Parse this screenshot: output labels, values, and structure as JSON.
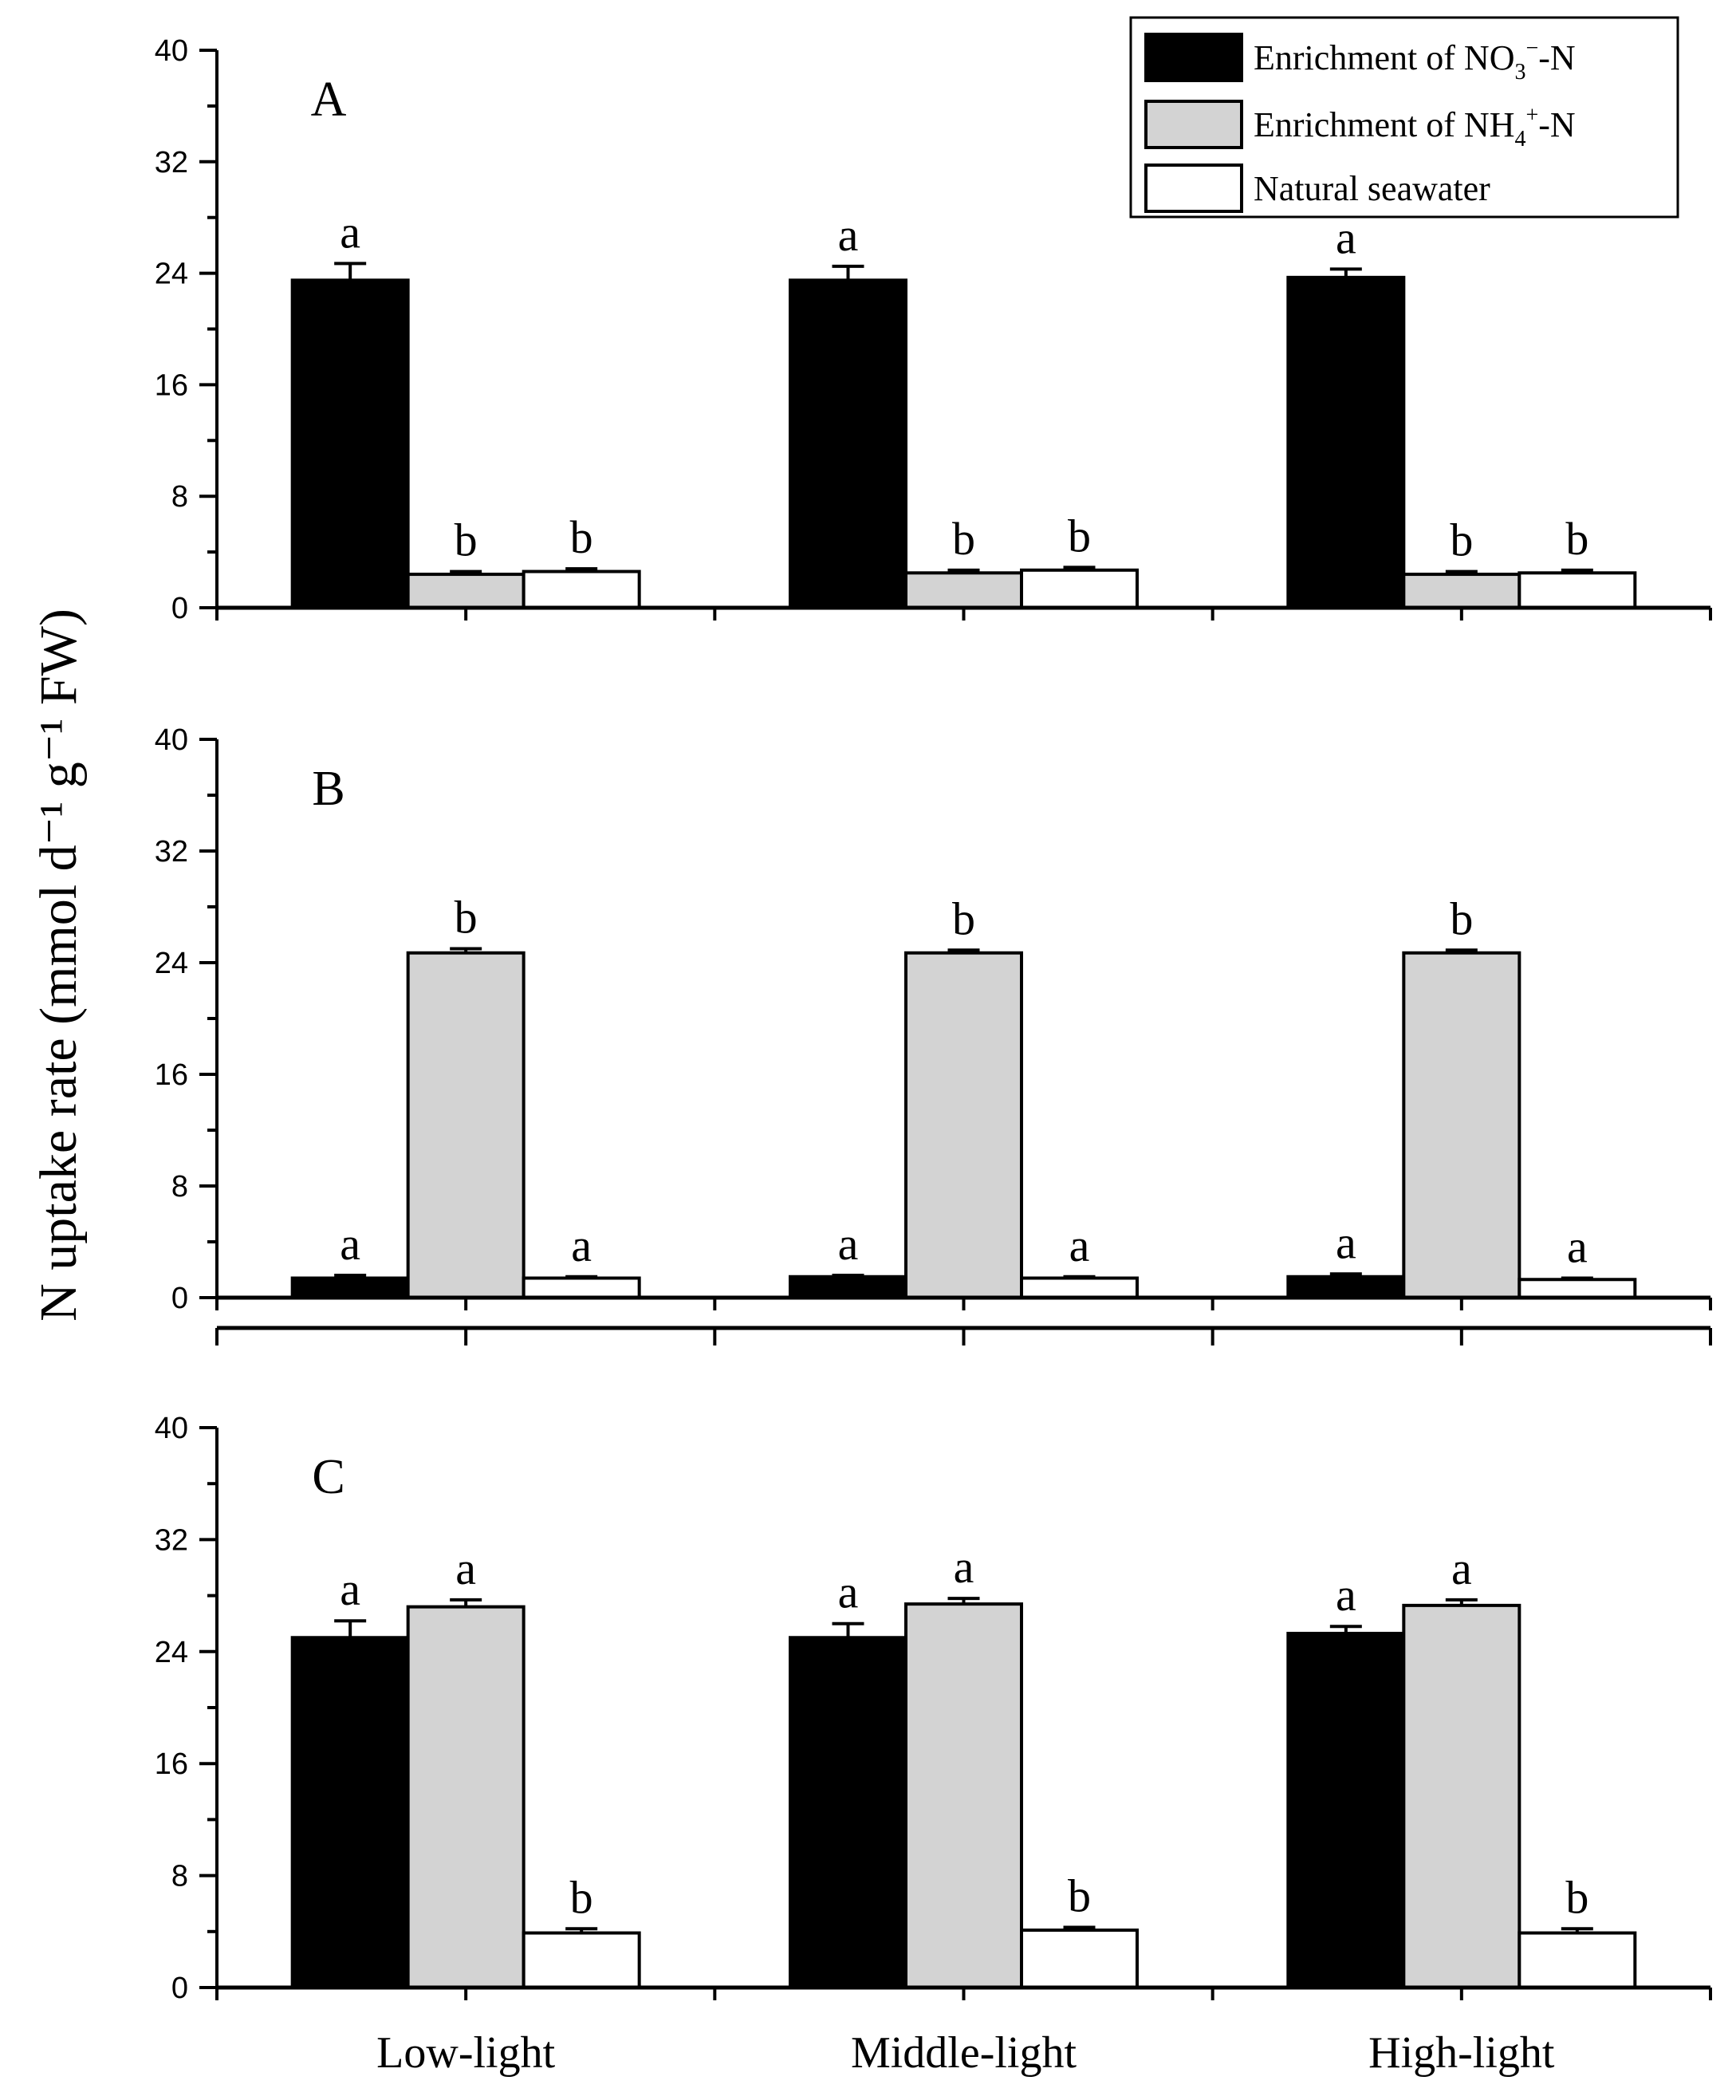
{
  "chart_data": {
    "type": "bar",
    "ylabel": "N uptake rate (mmol d⁻¹ g⁻¹ FW)",
    "ylim": [
      0,
      40
    ],
    "yticks": [
      0,
      8,
      16,
      24,
      32,
      40
    ],
    "categories": [
      "Low-light",
      "Middle-light",
      "High-light"
    ],
    "legend_position": "top-right",
    "legend": [
      {
        "label_main": "Enrichment of NO",
        "label_sub": "3",
        "label_sup": "−",
        "label_tail": "-N",
        "color": "#000000"
      },
      {
        "label_main": "Enrichment of NH",
        "label_sub": "4",
        "label_sup": "+",
        "label_tail": "-N",
        "color": "#d3d3d3"
      },
      {
        "label_main": "Natural seawater",
        "label_sub": "",
        "label_sup": "",
        "label_tail": "",
        "color": "#ffffff"
      }
    ],
    "panels": [
      {
        "label": "A",
        "series": [
          {
            "values": [
              23.5,
              23.5,
              23.7
            ],
            "errors": [
              1.2,
              1.0,
              0.6
            ],
            "letters": [
              "a",
              "a",
              "a"
            ]
          },
          {
            "values": [
              2.4,
              2.5,
              2.4
            ],
            "errors": [
              0.2,
              0.2,
              0.2
            ],
            "letters": [
              "b",
              "b",
              "b"
            ]
          },
          {
            "values": [
              2.6,
              2.7,
              2.5
            ],
            "errors": [
              0.2,
              0.2,
              0.2
            ],
            "letters": [
              "b",
              "b",
              "b"
            ]
          }
        ]
      },
      {
        "label": "B",
        "series": [
          {
            "values": [
              1.4,
              1.5,
              1.5
            ],
            "errors": [
              0.2,
              0.1,
              0.2
            ],
            "letters": [
              "a",
              "a",
              "a"
            ]
          },
          {
            "values": [
              24.7,
              24.7,
              24.7
            ],
            "errors": [
              0.3,
              0.2,
              0.2
            ],
            "letters": [
              "b",
              "b",
              "b"
            ]
          },
          {
            "values": [
              1.4,
              1.4,
              1.3
            ],
            "errors": [
              0.1,
              0.1,
              0.1
            ],
            "letters": [
              "a",
              "a",
              "a"
            ]
          }
        ]
      },
      {
        "label": "C",
        "series": [
          {
            "values": [
              25.0,
              25.0,
              25.3
            ],
            "errors": [
              1.2,
              1.0,
              0.5
            ],
            "letters": [
              "a",
              "a",
              "a"
            ]
          },
          {
            "values": [
              27.2,
              27.4,
              27.3
            ],
            "errors": [
              0.5,
              0.4,
              0.4
            ],
            "letters": [
              "a",
              "a",
              "a"
            ]
          },
          {
            "values": [
              3.9,
              4.1,
              3.9
            ],
            "errors": [
              0.3,
              0.2,
              0.3
            ],
            "letters": [
              "b",
              "b",
              "b"
            ]
          }
        ]
      }
    ]
  }
}
